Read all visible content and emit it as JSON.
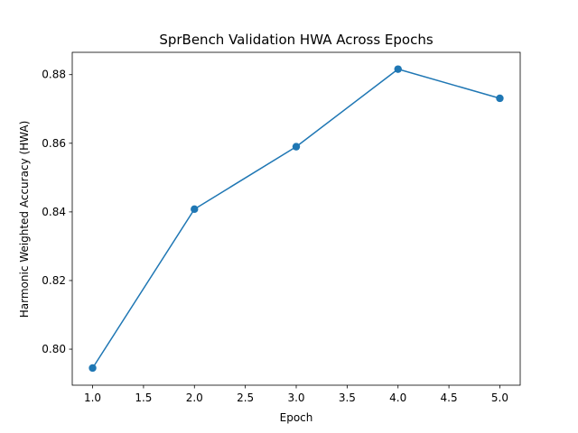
{
  "chart_data": {
    "type": "line",
    "title": "SprBench Validation HWA Across Epochs",
    "xlabel": "Epoch",
    "ylabel": "Harmonic Weighted Accuracy (HWA)",
    "xlim": [
      0.8,
      5.2
    ],
    "ylim": [
      0.7895,
      0.8865
    ],
    "x_ticks": [
      1.0,
      1.5,
      2.0,
      2.5,
      3.0,
      3.5,
      4.0,
      4.5,
      5.0
    ],
    "x_tick_labels": [
      "1.0",
      "1.5",
      "2.0",
      "2.5",
      "3.0",
      "3.5",
      "4.0",
      "4.5",
      "5.0"
    ],
    "y_ticks": [
      0.8,
      0.82,
      0.84,
      0.86,
      0.88
    ],
    "y_tick_labels": [
      "0.80",
      "0.82",
      "0.84",
      "0.86",
      "0.88"
    ],
    "grid": false,
    "legend": "none",
    "series": [
      {
        "color": "#1f77b4",
        "marker": "circle",
        "x": [
          1,
          2,
          3,
          4,
          5
        ],
        "values": [
          0.7945,
          0.8408,
          0.859,
          0.8816,
          0.8731
        ]
      }
    ]
  }
}
